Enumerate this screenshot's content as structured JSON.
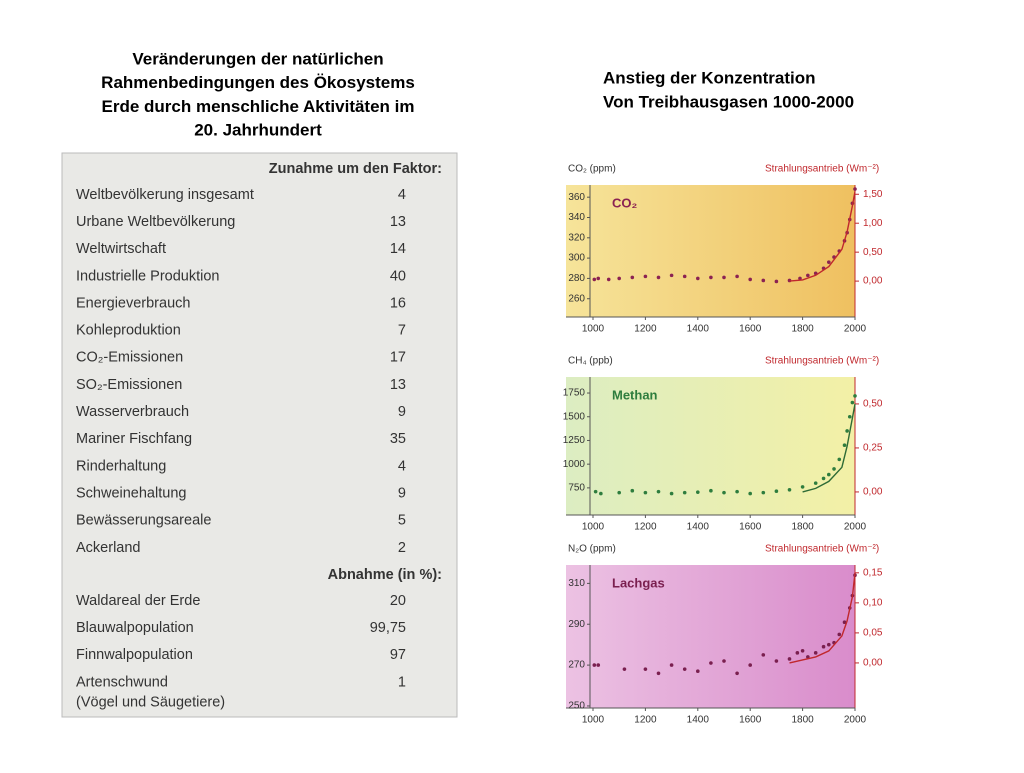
{
  "title": [
    "Veränderungen der natürlichen",
    "Rahmenbedingungen des Ökosystems",
    "Erde durch menschliche Aktivitäten im",
    "20. Jahrhundert"
  ],
  "right_title": [
    "Anstieg der Konzentration",
    "Von Treibhausgasen 1000-2000"
  ],
  "table": {
    "sections": [
      {
        "heading": "Zunahme um den Faktor:",
        "rows": [
          [
            "Weltbevölkerung insgesamt",
            "4"
          ],
          [
            "Urbane Weltbevölkerung",
            "13"
          ],
          [
            "Weltwirtschaft",
            "14"
          ],
          [
            "Industrielle Produktion",
            "40"
          ],
          [
            "Energieverbrauch",
            "16"
          ],
          [
            "Kohleproduktion",
            "7"
          ],
          [
            "CO₂-Emissionen",
            "17"
          ],
          [
            "SO₂-Emissionen",
            "13"
          ],
          [
            "Wasserverbrauch",
            "9"
          ],
          [
            "Mariner Fischfang",
            "35"
          ],
          [
            "Rinderhaltung",
            "4"
          ],
          [
            "Schweinehaltung",
            "9"
          ],
          [
            "Bewässerungsareale",
            "5"
          ],
          [
            "Ackerland",
            "2"
          ]
        ]
      },
      {
        "heading": "Abnahme (in %):",
        "rows": [
          [
            "Waldareal der Erde",
            "20"
          ],
          [
            "Blauwalpopulation",
            "99,75"
          ],
          [
            "Finnwalpopulation",
            "97"
          ],
          [
            "Artenschwund",
            "1",
            "(Vögel und Säugetiere)"
          ]
        ]
      }
    ]
  },
  "chart_data": [
    {
      "type": "scatter",
      "title": "CO₂",
      "ylabel": "CO₂ (ppm)",
      "y2label": "Strahlungsantrieb (Wm⁻²)",
      "xlim": [
        1000,
        2000
      ],
      "xticks": [
        1000,
        1200,
        1400,
        1600,
        1800,
        2000
      ],
      "ylim": [
        242,
        372
      ],
      "yticks": [
        260,
        280,
        300,
        320,
        340,
        360
      ],
      "y2lim": [
        -0.62,
        1.66
      ],
      "y2ticks": [
        {
          "value": 0,
          "label": "0,00"
        },
        {
          "value": 0.5,
          "label": "0,50"
        },
        {
          "value": 1,
          "label": "1,00"
        },
        {
          "value": 1.5,
          "label": "1,50"
        }
      ],
      "series": [
        {
          "color": "#8b2252",
          "x": [
            1005,
            1020,
            1060,
            1100,
            1150,
            1200,
            1250,
            1300,
            1350,
            1400,
            1450,
            1500,
            1550,
            1600,
            1650,
            1700,
            1750,
            1790,
            1820,
            1850,
            1880,
            1900,
            1920,
            1940,
            1960,
            1970,
            1980,
            1990,
            2000
          ],
          "values": [
            279,
            280,
            279,
            280,
            281,
            282,
            281,
            283,
            282,
            280,
            281,
            281,
            282,
            279,
            278,
            277,
            278,
            280,
            283,
            285,
            290,
            296,
            301,
            307,
            317,
            325,
            338,
            354,
            368
          ]
        },
        {
          "color": "#c0282d",
          "axis": "y2",
          "x": [
            1750,
            1800,
            1850,
            1900,
            1950,
            1970,
            1990,
            2000
          ],
          "values": [
            0,
            0.02,
            0.1,
            0.25,
            0.55,
            0.85,
            1.3,
            1.55
          ]
        }
      ]
    },
    {
      "type": "scatter",
      "title": "Methan",
      "ylabel": "CH₄ (ppb)",
      "y2label": "Strahlungsantrieb (Wm⁻²)",
      "xlim": [
        1000,
        2000
      ],
      "xticks": [
        1000,
        1200,
        1400,
        1600,
        1800,
        2000
      ],
      "ylim": [
        464,
        1919
      ],
      "yticks": [
        750,
        1000,
        1250,
        1500,
        1750
      ],
      "y2lim": [
        -0.131,
        0.653
      ],
      "y2ticks": [
        {
          "value": 0,
          "label": "0,00"
        },
        {
          "value": 0.25,
          "label": "0,25"
        },
        {
          "value": 0.5,
          "label": "0,50"
        }
      ],
      "series": [
        {
          "color": "#2e7d3e",
          "x": [
            1010,
            1030,
            1100,
            1150,
            1200,
            1250,
            1300,
            1350,
            1400,
            1450,
            1500,
            1550,
            1600,
            1650,
            1700,
            1750,
            1800,
            1850,
            1880,
            1900,
            1920,
            1940,
            1960,
            1970,
            1980,
            1990,
            2000
          ],
          "values": [
            710,
            690,
            700,
            720,
            700,
            710,
            690,
            700,
            705,
            720,
            700,
            710,
            690,
            700,
            715,
            730,
            760,
            800,
            850,
            890,
            950,
            1050,
            1200,
            1350,
            1500,
            1650,
            1720
          ]
        },
        {
          "color": "#2e6b35",
          "axis": "y2",
          "x": [
            1800,
            1850,
            1900,
            1950,
            1970,
            1990,
            2000
          ],
          "values": [
            0,
            0.02,
            0.06,
            0.14,
            0.26,
            0.42,
            0.5
          ]
        }
      ]
    },
    {
      "type": "scatter",
      "title": "Lachgas",
      "ylabel": "N₂O (ppm)",
      "y2label": "Strahlungsantrieb (Wm⁻²)",
      "xlim": [
        1000,
        2000
      ],
      "xticks": [
        1000,
        1200,
        1400,
        1600,
        1800,
        2000
      ],
      "ylim": [
        249,
        319
      ],
      "yticks": [
        250,
        270,
        290,
        310
      ],
      "y2lim": [
        -0.075,
        0.163
      ],
      "y2ticks": [
        {
          "value": 0,
          "label": "0,00"
        },
        {
          "value": 0.05,
          "label": "0,05"
        },
        {
          "value": 0.1,
          "label": "0,10"
        },
        {
          "value": 0.15,
          "label": "0,15"
        }
      ],
      "series": [
        {
          "color": "#7a1f4f",
          "x": [
            1005,
            1020,
            1120,
            1200,
            1250,
            1300,
            1350,
            1400,
            1450,
            1500,
            1550,
            1600,
            1650,
            1700,
            1750,
            1780,
            1800,
            1820,
            1850,
            1880,
            1900,
            1920,
            1940,
            1960,
            1980,
            1990,
            2000
          ],
          "values": [
            270,
            270,
            268,
            268,
            266,
            270,
            268,
            267,
            271,
            272,
            266,
            270,
            275,
            272,
            273,
            276,
            277,
            274,
            276,
            279,
            280,
            281,
            285,
            291,
            298,
            304,
            314
          ]
        },
        {
          "color": "#c0282d",
          "axis": "y2",
          "x": [
            1750,
            1800,
            1850,
            1900,
            1950,
            1970,
            1990,
            2000
          ],
          "values": [
            0,
            0.005,
            0.01,
            0.02,
            0.045,
            0.07,
            0.11,
            0.15
          ]
        }
      ]
    }
  ]
}
